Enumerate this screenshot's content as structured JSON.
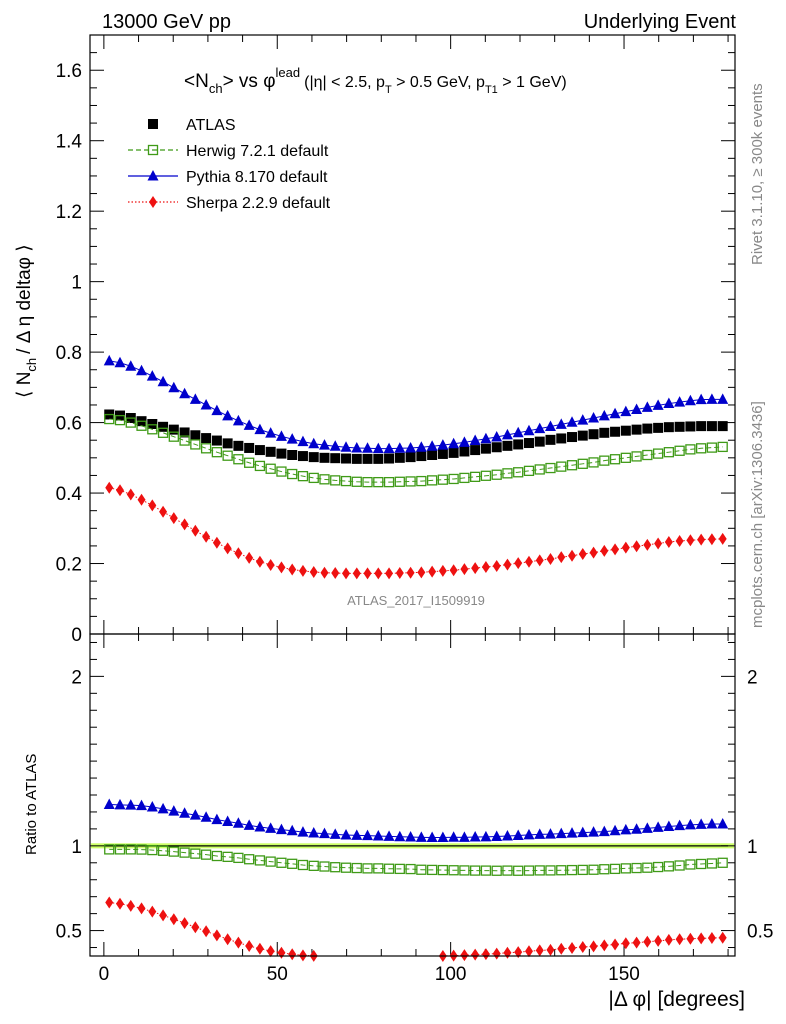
{
  "header": {
    "left": "13000 GeV pp",
    "right": "Underlying Event"
  },
  "side_text": {
    "rivet": "Rivet 3.1.10, ≥ 300k events",
    "mcplots": "mcplots.cern.ch [arXiv:1306.3436]"
  },
  "main_panel": {
    "title_main": "<N",
    "title_sub": "ch",
    "title_mid": "> vs φ",
    "title_sup": "lead",
    "title_cuts": "(|η| < 2.5, p",
    "title_cuts_sub1": "T",
    "title_cuts_mid": " > 0.5 GeV, p",
    "title_cuts_sub2": "T1",
    "title_cuts_end": " > 1 GeV)",
    "ylabel": "⟨ N",
    "ylabel_sub": "ch",
    "ylabel_end": "/ Δ η deltaφ ⟩",
    "watermark": "ATLAS_2017_I1509919"
  },
  "ratio_panel": {
    "ylabel": "Ratio to ATLAS"
  },
  "xaxis": {
    "label": "|Δ φ| [degrees]"
  },
  "colors": {
    "atlas": "#000000",
    "herwig": "#3f9a17",
    "pythia": "#0000cc",
    "sherpa": "#ee1111",
    "band": "#ccff66"
  },
  "chart_data": [
    {
      "type": "scatter",
      "xlim": [
        -4,
        182
      ],
      "ylim": [
        0,
        1.7
      ],
      "yticks": [
        0,
        0.2,
        0.4,
        0.6,
        0.8,
        1,
        1.2,
        1.4,
        1.6
      ],
      "ytick_labels": [
        "0",
        "0.2",
        "0.4",
        "0.6",
        "0.8",
        "1",
        "1.2",
        "1.4",
        "1.6"
      ],
      "xticks": [
        0,
        50,
        100,
        150
      ],
      "xtick_labels": [
        "0",
        "50",
        "100",
        "150"
      ],
      "legend_position": "top-left",
      "series": [
        {
          "name": "ATLAS",
          "marker": "filled-square",
          "y": [
            0.623,
            0.62,
            0.613,
            0.604,
            0.596,
            0.588,
            0.58,
            0.572,
            0.564,
            0.556,
            0.549,
            0.541,
            0.534,
            0.528,
            0.522,
            0.517,
            0.512,
            0.508,
            0.505,
            0.502,
            0.5,
            0.499,
            0.498,
            0.497,
            0.497,
            0.497,
            0.498,
            0.5,
            0.502,
            0.505,
            0.508,
            0.511,
            0.514,
            0.518,
            0.522,
            0.526,
            0.53,
            0.534,
            0.538,
            0.542,
            0.546,
            0.551,
            0.555,
            0.559,
            0.563,
            0.567,
            0.571,
            0.574,
            0.577,
            0.58,
            0.583,
            0.585,
            0.587,
            0.588,
            0.589,
            0.59,
            0.59,
            0.59
          ]
        },
        {
          "name": "Herwig 7.2.1 default",
          "marker": "open-square",
          "y": [
            0.61,
            0.607,
            0.6,
            0.591,
            0.581,
            0.571,
            0.56,
            0.549,
            0.538,
            0.527,
            0.516,
            0.506,
            0.496,
            0.486,
            0.477,
            0.469,
            0.461,
            0.454,
            0.448,
            0.443,
            0.439,
            0.436,
            0.434,
            0.432,
            0.431,
            0.431,
            0.431,
            0.432,
            0.433,
            0.434,
            0.436,
            0.438,
            0.44,
            0.443,
            0.446,
            0.449,
            0.452,
            0.456,
            0.459,
            0.463,
            0.467,
            0.471,
            0.475,
            0.479,
            0.483,
            0.487,
            0.492,
            0.496,
            0.5,
            0.504,
            0.508,
            0.512,
            0.516,
            0.52,
            0.524,
            0.527,
            0.529,
            0.531
          ]
        },
        {
          "name": "Pythia 8.170 default",
          "marker": "filled-triangle",
          "y": [
            0.775,
            0.77,
            0.76,
            0.747,
            0.732,
            0.716,
            0.699,
            0.682,
            0.666,
            0.65,
            0.634,
            0.619,
            0.605,
            0.592,
            0.58,
            0.57,
            0.561,
            0.553,
            0.546,
            0.54,
            0.536,
            0.533,
            0.53,
            0.528,
            0.527,
            0.526,
            0.526,
            0.527,
            0.528,
            0.53,
            0.533,
            0.536,
            0.54,
            0.544,
            0.549,
            0.554,
            0.559,
            0.565,
            0.571,
            0.577,
            0.583,
            0.589,
            0.595,
            0.601,
            0.607,
            0.613,
            0.619,
            0.625,
            0.631,
            0.637,
            0.643,
            0.649,
            0.654,
            0.658,
            0.662,
            0.665,
            0.666,
            0.666
          ]
        },
        {
          "name": "Sherpa 2.2.9 default",
          "marker": "filled-diamond",
          "y": [
            0.415,
            0.408,
            0.396,
            0.381,
            0.365,
            0.347,
            0.329,
            0.311,
            0.293,
            0.276,
            0.259,
            0.243,
            0.229,
            0.216,
            0.205,
            0.196,
            0.189,
            0.183,
            0.179,
            0.176,
            0.174,
            0.173,
            0.172,
            0.172,
            0.172,
            0.172,
            0.172,
            0.173,
            0.174,
            0.175,
            0.177,
            0.179,
            0.181,
            0.184,
            0.187,
            0.19,
            0.193,
            0.197,
            0.201,
            0.205,
            0.209,
            0.213,
            0.218,
            0.222,
            0.227,
            0.231,
            0.236,
            0.24,
            0.245,
            0.249,
            0.253,
            0.257,
            0.261,
            0.264,
            0.266,
            0.268,
            0.269,
            0.27
          ]
        }
      ],
      "x": [
        1.55,
        4.65,
        7.76,
        10.86,
        13.97,
        17.07,
        20.17,
        23.28,
        26.38,
        29.48,
        32.59,
        35.69,
        38.79,
        41.9,
        45,
        48.1,
        51.21,
        54.31,
        57.41,
        60.52,
        63.62,
        66.72,
        69.83,
        72.93,
        76.03,
        79.14,
        82.24,
        85.34,
        88.45,
        91.55,
        94.66,
        97.76,
        100.86,
        103.97,
        107.07,
        110.17,
        113.28,
        116.38,
        119.48,
        122.59,
        125.69,
        128.79,
        131.9,
        135,
        138.1,
        141.21,
        144.31,
        147.41,
        150.52,
        153.62,
        156.72,
        159.83,
        162.93,
        166.03,
        169.14,
        172.24,
        175.34,
        178.45
      ]
    },
    {
      "type": "scatter",
      "title": "Ratio to ATLAS",
      "xlim": [
        -4,
        182
      ],
      "ylim": [
        0.35,
        2.25
      ],
      "yticks": [
        0.5,
        1,
        2
      ],
      "ytick_labels": [
        "0.5",
        "1",
        "2"
      ],
      "reference_band": [
        0.985,
        1.015
      ],
      "series": [
        {
          "name": "Herwig 7.2.1 default",
          "marker": "open-square",
          "y": [
            0.979,
            0.979,
            0.979,
            0.978,
            0.975,
            0.971,
            0.966,
            0.96,
            0.954,
            0.948,
            0.94,
            0.935,
            0.929,
            0.921,
            0.914,
            0.907,
            0.9,
            0.894,
            0.887,
            0.882,
            0.878,
            0.874,
            0.871,
            0.869,
            0.867,
            0.867,
            0.865,
            0.864,
            0.863,
            0.859,
            0.858,
            0.857,
            0.856,
            0.855,
            0.854,
            0.854,
            0.853,
            0.854,
            0.853,
            0.854,
            0.855,
            0.855,
            0.856,
            0.857,
            0.858,
            0.859,
            0.862,
            0.864,
            0.867,
            0.869,
            0.871,
            0.875,
            0.879,
            0.884,
            0.89,
            0.893,
            0.896,
            0.9
          ]
        },
        {
          "name": "Pythia 8.170 default",
          "marker": "filled-triangle",
          "y": [
            1.244,
            1.242,
            1.24,
            1.237,
            1.229,
            1.218,
            1.205,
            1.192,
            1.181,
            1.169,
            1.155,
            1.144,
            1.133,
            1.121,
            1.111,
            1.103,
            1.096,
            1.089,
            1.081,
            1.076,
            1.072,
            1.068,
            1.064,
            1.062,
            1.06,
            1.058,
            1.056,
            1.054,
            1.052,
            1.05,
            1.049,
            1.049,
            1.051,
            1.05,
            1.052,
            1.053,
            1.055,
            1.058,
            1.061,
            1.065,
            1.068,
            1.069,
            1.072,
            1.075,
            1.078,
            1.081,
            1.084,
            1.089,
            1.094,
            1.098,
            1.103,
            1.109,
            1.114,
            1.119,
            1.124,
            1.127,
            1.129,
            1.129
          ]
        },
        {
          "name": "Sherpa 2.2.9 default",
          "marker": "filled-diamond",
          "y": [
            0.666,
            0.658,
            0.646,
            0.631,
            0.612,
            0.59,
            0.567,
            0.544,
            0.52,
            0.496,
            0.472,
            0.449,
            0.429,
            0.409,
            0.393,
            0.379,
            0.369,
            0.36,
            0.354,
            0.351,
            0.348,
            0.347,
            0.345,
            0.346,
            0.346,
            0.346,
            0.345,
            0.346,
            0.347,
            0.347,
            0.348,
            0.35,
            0.352,
            0.355,
            0.358,
            0.361,
            0.364,
            0.369,
            0.373,
            0.378,
            0.383,
            0.386,
            0.393,
            0.397,
            0.403,
            0.407,
            0.413,
            0.418,
            0.425,
            0.429,
            0.434,
            0.439,
            0.445,
            0.449,
            0.452,
            0.454,
            0.456,
            0.458
          ]
        }
      ],
      "x": [
        1.55,
        4.65,
        7.76,
        10.86,
        13.97,
        17.07,
        20.17,
        23.28,
        26.38,
        29.48,
        32.59,
        35.69,
        38.79,
        41.9,
        45,
        48.1,
        51.21,
        54.31,
        57.41,
        60.52,
        63.62,
        66.72,
        69.83,
        72.93,
        76.03,
        79.14,
        82.24,
        85.34,
        88.45,
        91.55,
        94.66,
        97.76,
        100.86,
        103.97,
        107.07,
        110.17,
        113.28,
        116.38,
        119.48,
        122.59,
        125.69,
        128.79,
        131.9,
        135,
        138.1,
        141.21,
        144.31,
        147.41,
        150.52,
        153.62,
        156.72,
        159.83,
        162.93,
        166.03,
        169.14,
        172.24,
        175.34,
        178.45
      ]
    }
  ]
}
